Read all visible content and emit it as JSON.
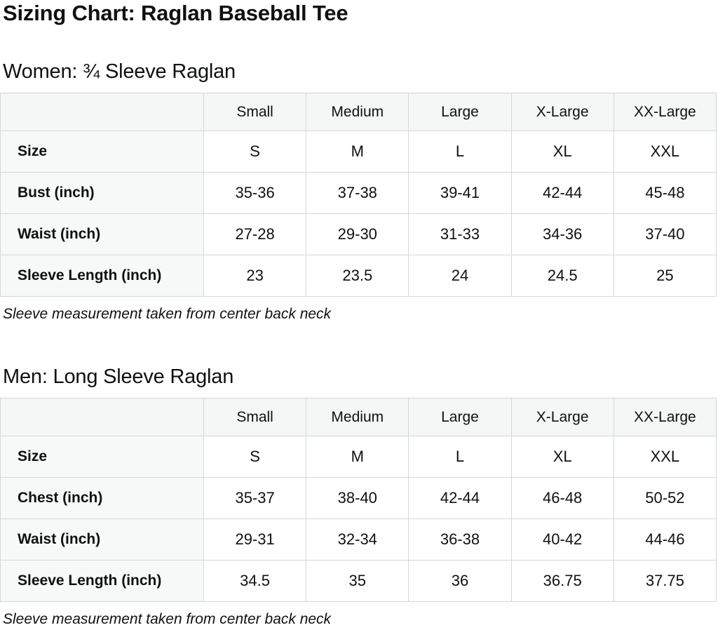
{
  "page_title": "Sizing Chart: Raglan Baseball Tee",
  "colors": {
    "header_background": "#f5f6f6",
    "label_column_background": "#f7f8f8",
    "border": "#d5d9d9",
    "text": "#0f1111"
  },
  "sections": [
    {
      "heading": "Women: ¾ Sleeve Raglan",
      "note": "Sleeve measurement taken from center back neck",
      "table": {
        "columns": [
          "",
          "Small",
          "Medium",
          "Large",
          "X-Large",
          "XX-Large"
        ],
        "rows": [
          {
            "label": "Size",
            "values": [
              "S",
              "M",
              "L",
              "XL",
              "XXL"
            ]
          },
          {
            "label": "Bust (inch)",
            "values": [
              "35-36",
              "37-38",
              "39-41",
              "42-44",
              "45-48"
            ]
          },
          {
            "label": "Waist (inch)",
            "values": [
              "27-28",
              "29-30",
              "31-33",
              "34-36",
              "37-40"
            ]
          },
          {
            "label": "Sleeve Length (inch)",
            "values": [
              "23",
              "23.5",
              "24",
              "24.5",
              "25"
            ]
          }
        ]
      }
    },
    {
      "heading": "Men: Long Sleeve Raglan",
      "note": "Sleeve measurement taken from center back neck",
      "table": {
        "columns": [
          "",
          "Small",
          "Medium",
          "Large",
          "X-Large",
          "XX-Large"
        ],
        "rows": [
          {
            "label": "Size",
            "values": [
              "S",
              "M",
              "L",
              "XL",
              "XXL"
            ]
          },
          {
            "label": "Chest (inch)",
            "values": [
              "35-37",
              "38-40",
              "42-44",
              "46-48",
              "50-52"
            ]
          },
          {
            "label": "Waist (inch)",
            "values": [
              "29-31",
              "32-34",
              "36-38",
              "40-42",
              "44-46"
            ]
          },
          {
            "label": "Sleeve Length (inch)",
            "values": [
              "34.5",
              "35",
              "36",
              "36.75",
              "37.75"
            ]
          }
        ]
      }
    }
  ]
}
